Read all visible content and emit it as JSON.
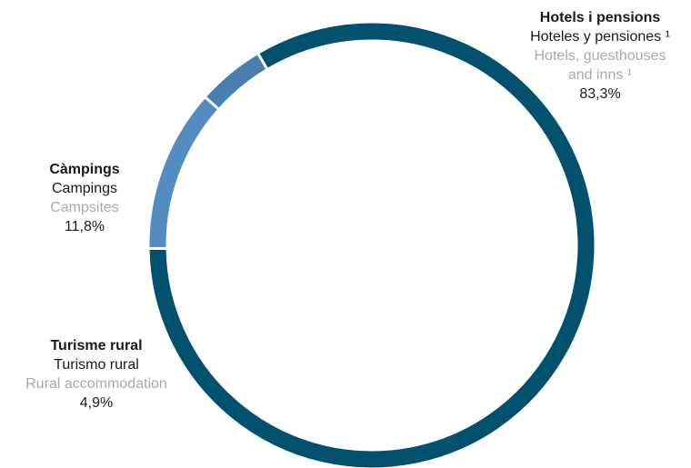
{
  "chart_data": {
    "type": "pie",
    "style": "donut",
    "title": "",
    "slices": [
      {
        "label_ca": "Hotels i pensions",
        "label_es": "Hoteles y pensiones ¹",
        "label_en": "Hotels, guesthouses and inns ¹",
        "value": 83.3,
        "value_label": "83,3%",
        "color": "#00506e"
      },
      {
        "label_ca": "Càmpings",
        "label_es": "Campings",
        "label_en": "Campsites",
        "value": 11.8,
        "value_label": "11,8%",
        "color": "#528cc0"
      },
      {
        "label_ca": "Turisme rural",
        "label_es": "Turismo rural",
        "label_en": "Rural accommodation",
        "value": 4.9,
        "value_label": "4,9%",
        "color": "#4a7eae"
      }
    ]
  },
  "labels": {
    "hotels": {
      "ca": "Hotels i pensions",
      "es": "Hoteles y pensiones ¹",
      "en_line1": "Hotels, guesthouses",
      "en_line2": "and inns ¹",
      "pct": "83,3%"
    },
    "campings": {
      "ca": "Càmpings",
      "es": "Campings",
      "en": "Campsites",
      "pct": "11,8%"
    },
    "rural": {
      "ca": "Turisme rural",
      "es": "Turismo rural",
      "en": "Rural accommodation",
      "pct": "4,9%"
    }
  }
}
